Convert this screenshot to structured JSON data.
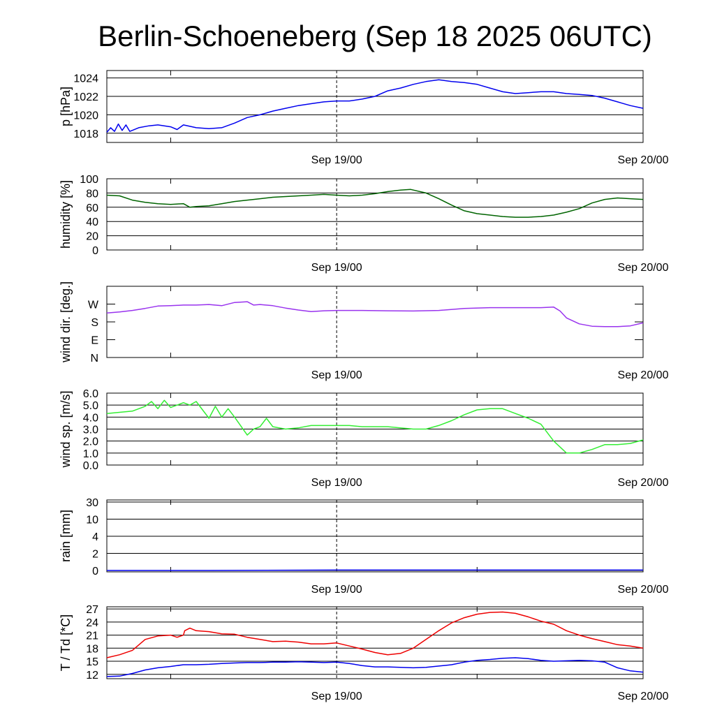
{
  "title": "Berlin-Schoeneberg (Sep 18 2025 06UTC)",
  "chart_data": [
    {
      "type": "line",
      "ylabel": "p [hPa]",
      "x_unit": "hours since Sep 18 2025 06UTC",
      "xlim": [
        0,
        42
      ],
      "x_tick_labels": [
        {
          "x": 18,
          "label": "Sep 19/00"
        },
        {
          "x": 42,
          "label": "Sep 20/00"
        }
      ],
      "ylim": [
        1017,
        1024.8
      ],
      "y_ticks": [
        1018,
        1020,
        1022,
        1024
      ],
      "grid": true,
      "series": [
        {
          "color": "#0000ee",
          "x": [
            0,
            0.3,
            0.6,
            0.9,
            1.2,
            1.5,
            1.8,
            2.5,
            3.3,
            4,
            5,
            5.5,
            6,
            7,
            8,
            9,
            10,
            11,
            12,
            13,
            14,
            15,
            16,
            17,
            18,
            19,
            20,
            21,
            22,
            23,
            24,
            25,
            26,
            27,
            28,
            29,
            30,
            31,
            32,
            33,
            34,
            35,
            36,
            37,
            38,
            39,
            40,
            41,
            42
          ],
          "values": [
            1018.1,
            1018.6,
            1018.2,
            1019.0,
            1018.3,
            1018.9,
            1018.2,
            1018.6,
            1018.8,
            1018.9,
            1018.7,
            1018.4,
            1018.9,
            1018.6,
            1018.5,
            1018.6,
            1019.1,
            1019.7,
            1020.0,
            1020.4,
            1020.7,
            1021.0,
            1021.2,
            1021.4,
            1021.5,
            1021.5,
            1021.7,
            1022.0,
            1022.6,
            1022.9,
            1023.3,
            1023.6,
            1023.8,
            1023.6,
            1023.5,
            1023.3,
            1022.9,
            1022.5,
            1022.3,
            1022.4,
            1022.5,
            1022.5,
            1022.3,
            1022.2,
            1022.1,
            1021.8,
            1021.4,
            1021.0,
            1020.7
          ]
        }
      ]
    },
    {
      "type": "line",
      "ylabel": "humidity [%]",
      "x_unit": "hours since Sep 18 2025 06UTC",
      "xlim": [
        0,
        42
      ],
      "x_tick_labels": [
        {
          "x": 18,
          "label": "Sep 19/00"
        },
        {
          "x": 42,
          "label": "Sep 20/00"
        }
      ],
      "ylim": [
        0,
        100
      ],
      "y_ticks": [
        0,
        20,
        40,
        60,
        80,
        100
      ],
      "grid": true,
      "series": [
        {
          "color": "#006400",
          "x": [
            0,
            1,
            2,
            3,
            4,
            5,
            6,
            6.5,
            7,
            8,
            9,
            10,
            11,
            12,
            13,
            14,
            15,
            16,
            17,
            18,
            19,
            20,
            21,
            22,
            23,
            23.8,
            25,
            26,
            27,
            28,
            29,
            30,
            31,
            32,
            33,
            34,
            35,
            36,
            37,
            38,
            39,
            40,
            41,
            42
          ],
          "values": [
            77,
            76,
            70,
            67,
            65,
            64,
            65,
            60,
            61,
            62,
            65,
            68,
            70,
            72,
            74,
            75,
            76,
            77,
            78,
            77,
            76,
            77,
            79,
            82,
            84,
            85,
            80,
            72,
            63,
            55,
            51,
            49,
            47,
            46,
            46,
            47,
            49,
            53,
            58,
            66,
            71,
            73,
            72,
            71
          ]
        }
      ]
    },
    {
      "type": "line",
      "ylabel": "wind dir. [deg.]",
      "x_unit": "hours since Sep 18 2025 06UTC",
      "xlim": [
        0,
        42
      ],
      "x_tick_labels": [
        {
          "x": 18,
          "label": "Sep 19/00"
        },
        {
          "x": 42,
          "label": "Sep 20/00"
        }
      ],
      "y_tick_labels": [
        {
          "value": 0,
          "label": "N"
        },
        {
          "value": 90,
          "label": "E"
        },
        {
          "value": 180,
          "label": "S"
        },
        {
          "value": 270,
          "label": "W"
        }
      ],
      "ylim": [
        0,
        360
      ],
      "grid": false,
      "series": [
        {
          "color": "#9933ee",
          "x": [
            0,
            1,
            2,
            3,
            4,
            5,
            6,
            7,
            8,
            9,
            10,
            11,
            11.5,
            12,
            13,
            14,
            15,
            16,
            17,
            18,
            19,
            20,
            22,
            24,
            26,
            28,
            30,
            32,
            34,
            35,
            35.5,
            36,
            37,
            38,
            39,
            40,
            41,
            42
          ],
          "values": [
            225,
            230,
            238,
            248,
            260,
            262,
            265,
            265,
            268,
            262,
            278,
            282,
            265,
            268,
            262,
            250,
            240,
            232,
            236,
            238,
            238,
            238,
            236,
            235,
            238,
            248,
            252,
            252,
            252,
            255,
            235,
            200,
            170,
            158,
            156,
            156,
            160,
            175
          ]
        }
      ]
    },
    {
      "type": "line",
      "ylabel": "wind sp. [m/s]",
      "x_unit": "hours since Sep 18 2025 06UTC",
      "xlim": [
        0,
        42
      ],
      "x_tick_labels": [
        {
          "x": 18,
          "label": "Sep 19/00"
        },
        {
          "x": 42,
          "label": "Sep 20/00"
        }
      ],
      "ylim": [
        0,
        6
      ],
      "y_ticks": [
        0,
        1,
        2,
        3,
        4,
        5,
        6
      ],
      "y_tick_labels": [
        "0.0",
        "1.0",
        "2.0",
        "3.0",
        "4.0",
        "5.0",
        "6.0"
      ],
      "grid": true,
      "series": [
        {
          "color": "#33ee33",
          "x": [
            0,
            1,
            2,
            3,
            3.5,
            4,
            4.5,
            5,
            5.5,
            6,
            6.5,
            7,
            7.5,
            8,
            8.5,
            9,
            9.5,
            10,
            11,
            11.5,
            12,
            12.5,
            13,
            14,
            15,
            16,
            17,
            18,
            19,
            20,
            22,
            24,
            25,
            26,
            27,
            28,
            29,
            30,
            31,
            32,
            33,
            34,
            35,
            36,
            37,
            38,
            39,
            40,
            41,
            42
          ],
          "values": [
            4.3,
            4.4,
            4.5,
            4.9,
            5.3,
            4.7,
            5.4,
            4.8,
            5.0,
            5.2,
            5.0,
            5.3,
            4.6,
            3.9,
            4.9,
            4.0,
            4.7,
            4.0,
            2.5,
            3.0,
            3.2,
            3.9,
            3.2,
            3.0,
            3.1,
            3.3,
            3.3,
            3.3,
            3.3,
            3.2,
            3.2,
            3.0,
            3.0,
            3.3,
            3.7,
            4.2,
            4.6,
            4.7,
            4.7,
            4.3,
            3.9,
            3.4,
            2.0,
            1.0,
            1.0,
            1.3,
            1.7,
            1.7,
            1.8,
            2.1
          ]
        }
      ]
    },
    {
      "type": "line",
      "ylabel": "rain [mm]",
      "x_unit": "hours since Sep 18 2025 06UTC",
      "xlim": [
        0,
        42
      ],
      "x_tick_labels": [
        {
          "x": 18,
          "label": "Sep 19/00"
        },
        {
          "x": 42,
          "label": "Sep 20/00"
        }
      ],
      "y_ticks": [
        0,
        2,
        4,
        10,
        30
      ],
      "y_scale": "nonlinear (0, 2, 4, 10, 30 equally stepped)",
      "grid": true,
      "series": [
        {
          "color": "#0000ee",
          "x": [
            0,
            8,
            18,
            30,
            42
          ],
          "values": [
            0,
            0,
            0.05,
            0.05,
            0.05
          ]
        }
      ]
    },
    {
      "type": "line",
      "ylabel": "T / Td [*C]",
      "x_unit": "hours since Sep 18 2025 06UTC",
      "xlim": [
        0,
        42
      ],
      "x_tick_labels": [
        {
          "x": 18,
          "label": "Sep 19/00"
        },
        {
          "x": 42,
          "label": "Sep 20/00"
        }
      ],
      "ylim": [
        11,
        27.5
      ],
      "y_ticks": [
        12,
        15,
        18,
        21,
        24,
        27
      ],
      "grid": true,
      "series": [
        {
          "color": "#ee0000",
          "x": [
            0,
            1,
            2,
            3,
            4,
            5,
            5.5,
            6,
            6.1,
            6.5,
            7,
            8,
            9,
            10,
            11,
            12,
            13,
            14,
            15,
            16,
            17,
            18,
            19,
            20,
            21,
            22,
            23,
            24,
            25,
            26,
            27,
            28,
            29,
            30,
            31,
            32,
            33,
            34,
            35,
            36,
            37,
            38,
            39,
            40,
            41,
            42
          ],
          "values": [
            15.8,
            16.5,
            17.5,
            20.0,
            20.8,
            21.0,
            20.5,
            21.0,
            22.0,
            22.6,
            22.0,
            21.8,
            21.3,
            21.2,
            20.5,
            20.0,
            19.5,
            19.6,
            19.4,
            19.0,
            19.0,
            19.2,
            18.5,
            17.8,
            17.0,
            16.5,
            16.8,
            18.0,
            20.0,
            22.0,
            23.8,
            25.0,
            25.8,
            26.2,
            26.3,
            26.0,
            25.2,
            24.2,
            23.5,
            22.0,
            21.0,
            20.2,
            19.5,
            18.8,
            18.5,
            18.0
          ]
        },
        {
          "color": "#0000ee",
          "x": [
            0,
            1,
            2,
            3,
            4,
            5,
            6,
            7,
            8,
            9,
            10,
            11,
            12,
            13,
            14,
            15,
            16,
            17,
            18,
            19,
            20,
            21,
            22,
            23,
            24,
            25,
            26,
            27,
            28,
            29,
            30,
            31,
            32,
            33,
            34,
            35,
            36,
            37,
            38,
            39,
            40,
            41,
            42
          ],
          "values": [
            11.5,
            11.6,
            12.2,
            13.0,
            13.5,
            13.8,
            14.2,
            14.2,
            14.3,
            14.5,
            14.6,
            14.7,
            14.7,
            14.8,
            14.8,
            14.9,
            14.8,
            14.7,
            14.8,
            14.5,
            14.0,
            13.7,
            13.7,
            13.6,
            13.5,
            13.6,
            13.9,
            14.2,
            14.8,
            15.2,
            15.4,
            15.7,
            15.8,
            15.6,
            15.2,
            15.0,
            15.1,
            15.2,
            15.1,
            14.8,
            13.5,
            12.8,
            12.5
          ]
        }
      ]
    }
  ]
}
